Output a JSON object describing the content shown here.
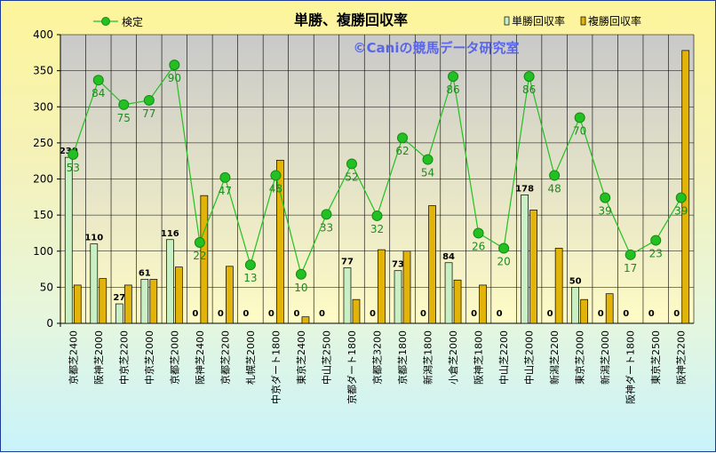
{
  "chart_data": {
    "type": "bar",
    "title": "単勝、複勝回収率",
    "watermark": "©Caniの競馬データ研究室",
    "categories": [
      "京都芝2400",
      "阪神芝2000",
      "中京芝2200",
      "中京芝2000",
      "京都芝2000",
      "阪神芝2400",
      "京都芝2200",
      "札幌芝2000",
      "中京ダート1800",
      "東京芝2400",
      "中山芝2500",
      "京都ダート1800",
      "京都芝3200",
      "京都芝1800",
      "新潟芝1800",
      "小倉芝2000",
      "阪神芝1800",
      "中山芝2200",
      "中山芝2000",
      "新潟芝2200",
      "東京芝2000",
      "新潟芝2000",
      "阪神ダート1800",
      "東京芝2500",
      "阪神芝2200"
    ],
    "ylim": [
      0,
      400
    ],
    "yticks": [
      0,
      50,
      100,
      150,
      200,
      250,
      300,
      350,
      400
    ],
    "grid": true,
    "legend_position": "top",
    "series": [
      {
        "name": "単勝回収率",
        "kind": "bar",
        "color": "#c8f0c4",
        "values": [
          230,
          110,
          27,
          61,
          116,
          0,
          0,
          0,
          0,
          0,
          0,
          77,
          0,
          73,
          0,
          84,
          0,
          0,
          178,
          0,
          50,
          0,
          0,
          0,
          0
        ]
      },
      {
        "name": "複勝回収率",
        "kind": "bar",
        "color": "#e2b309",
        "values": [
          53,
          62,
          53,
          61,
          78,
          177,
          79,
          0,
          226,
          9,
          0,
          33,
          102,
          100,
          163,
          60,
          53,
          0,
          157,
          104,
          33,
          41,
          0,
          0,
          378
        ]
      },
      {
        "name": "検定",
        "kind": "line",
        "color": "#22c022",
        "values": [
          234,
          337,
          303,
          309,
          358,
          112,
          202,
          81,
          205,
          68,
          151,
          221,
          149,
          257,
          227,
          342,
          125,
          104,
          342,
          205,
          285,
          174,
          95,
          115,
          174
        ],
        "labels": [
          "53",
          "84",
          "75",
          "77",
          "90",
          "22",
          "47",
          "13",
          "48",
          "10",
          "33",
          "52",
          "32",
          "62",
          "54",
          "86",
          "26",
          "20",
          "86",
          "48",
          "70",
          "39",
          "17",
          "23",
          "39"
        ]
      }
    ]
  }
}
